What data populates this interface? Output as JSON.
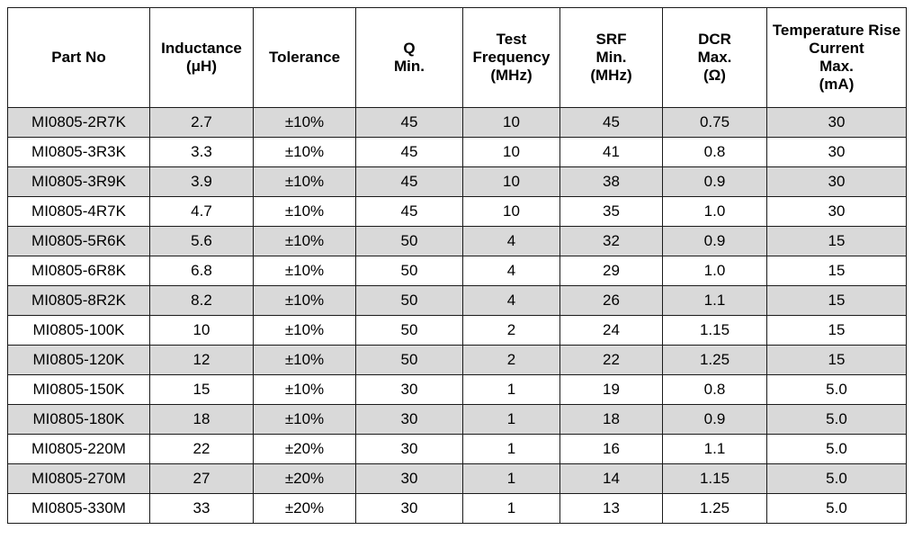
{
  "table": {
    "headers": [
      [
        "Part No"
      ],
      [
        "Inductance",
        "(μH)"
      ],
      [
        "Tolerance"
      ],
      [
        "Q",
        "Min."
      ],
      [
        "Test",
        "Frequency",
        "(MHz)"
      ],
      [
        "SRF",
        "Min.",
        "(MHz)"
      ],
      [
        "DCR",
        "Max.",
        "(Ω)"
      ],
      [
        "Temperature Rise",
        "Current",
        "Max.",
        "(mA)"
      ]
    ],
    "rows": [
      [
        "MI0805-2R7K",
        "2.7",
        "±10%",
        "45",
        "10",
        "45",
        "0.75",
        "30"
      ],
      [
        "MI0805-3R3K",
        "3.3",
        "±10%",
        "45",
        "10",
        "41",
        "0.8",
        "30"
      ],
      [
        "MI0805-3R9K",
        "3.9",
        "±10%",
        "45",
        "10",
        "38",
        "0.9",
        "30"
      ],
      [
        "MI0805-4R7K",
        "4.7",
        "±10%",
        "45",
        "10",
        "35",
        "1.0",
        "30"
      ],
      [
        "MI0805-5R6K",
        "5.6",
        "±10%",
        "50",
        "4",
        "32",
        "0.9",
        "15"
      ],
      [
        "MI0805-6R8K",
        "6.8",
        "±10%",
        "50",
        "4",
        "29",
        "1.0",
        "15"
      ],
      [
        "MI0805-8R2K",
        "8.2",
        "±10%",
        "50",
        "4",
        "26",
        "1.1",
        "15"
      ],
      [
        "MI0805-100K",
        "10",
        "±10%",
        "50",
        "2",
        "24",
        "1.15",
        "15"
      ],
      [
        "MI0805-120K",
        "12",
        "±10%",
        "50",
        "2",
        "22",
        "1.25",
        "15"
      ],
      [
        "MI0805-150K",
        "15",
        "±10%",
        "30",
        "1",
        "19",
        "0.8",
        "5.0"
      ],
      [
        "MI0805-180K",
        "18",
        "±10%",
        "30",
        "1",
        "18",
        "0.9",
        "5.0"
      ],
      [
        "MI0805-220M",
        "22",
        "±20%",
        "30",
        "1",
        "16",
        "1.1",
        "5.0"
      ],
      [
        "MI0805-270M",
        "27",
        "±20%",
        "30",
        "1",
        "14",
        "1.15",
        "5.0"
      ],
      [
        "MI0805-330M",
        "33",
        "±20%",
        "30",
        "1",
        "13",
        "1.25",
        "5.0"
      ]
    ],
    "striped_row_color": "#d9d9d9"
  }
}
